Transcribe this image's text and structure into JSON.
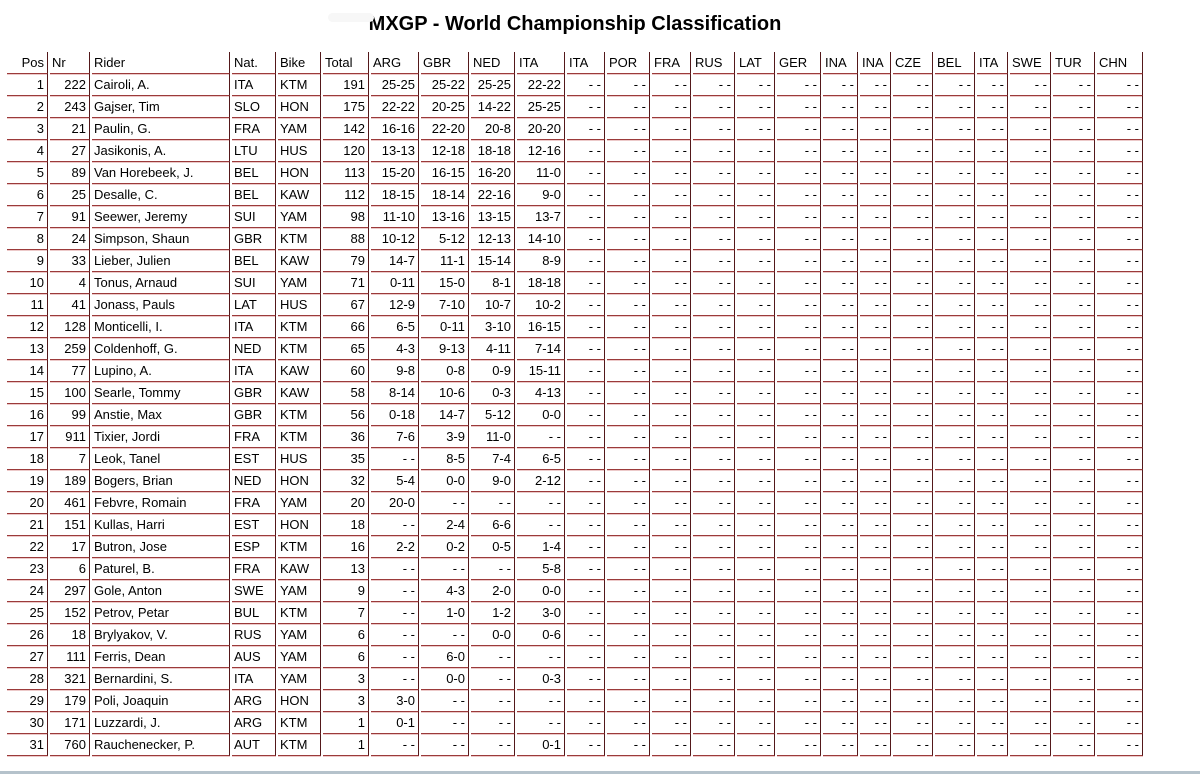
{
  "title": "MXGP - World Championship Classification",
  "table": {
    "columns": [
      "Pos",
      "Nr",
      "Rider",
      "Nat.",
      "Bike",
      "Total",
      "ARG",
      "GBR",
      "NED",
      "ITA",
      "ITA",
      "POR",
      "FRA",
      "RUS",
      "LAT",
      "GER",
      "INA",
      "INA",
      "CZE",
      "BEL",
      "ITA",
      "SWE",
      "TUR",
      "CHN"
    ],
    "gp_count": 18,
    "empty_cell": "- -",
    "rows": [
      {
        "pos": "1",
        "nr": "222",
        "rider": "Cairoli, A.",
        "nat": "ITA",
        "bike": "KTM",
        "total": "191",
        "results": [
          "25-25",
          "25-22",
          "25-25",
          "22-22"
        ]
      },
      {
        "pos": "2",
        "nr": "243",
        "rider": "Gajser, Tim",
        "nat": "SLO",
        "bike": "HON",
        "total": "175",
        "results": [
          "22-22",
          "20-25",
          "14-22",
          "25-25"
        ]
      },
      {
        "pos": "3",
        "nr": "21",
        "rider": "Paulin, G.",
        "nat": "FRA",
        "bike": "YAM",
        "total": "142",
        "results": [
          "16-16",
          "22-20",
          "20-8",
          "20-20"
        ]
      },
      {
        "pos": "4",
        "nr": "27",
        "rider": "Jasikonis, A.",
        "nat": "LTU",
        "bike": "HUS",
        "total": "120",
        "results": [
          "13-13",
          "12-18",
          "18-18",
          "12-16"
        ]
      },
      {
        "pos": "5",
        "nr": "89",
        "rider": "Van Horebeek, J.",
        "nat": "BEL",
        "bike": "HON",
        "total": "113",
        "results": [
          "15-20",
          "16-15",
          "16-20",
          "11-0"
        ]
      },
      {
        "pos": "6",
        "nr": "25",
        "rider": "Desalle, C.",
        "nat": "BEL",
        "bike": "KAW",
        "total": "112",
        "results": [
          "18-15",
          "18-14",
          "22-16",
          "9-0"
        ]
      },
      {
        "pos": "7",
        "nr": "91",
        "rider": "Seewer, Jeremy",
        "nat": "SUI",
        "bike": "YAM",
        "total": "98",
        "results": [
          "11-10",
          "13-16",
          "13-15",
          "13-7"
        ]
      },
      {
        "pos": "8",
        "nr": "24",
        "rider": "Simpson, Shaun",
        "nat": "GBR",
        "bike": "KTM",
        "total": "88",
        "results": [
          "10-12",
          "5-12",
          "12-13",
          "14-10"
        ]
      },
      {
        "pos": "9",
        "nr": "33",
        "rider": "Lieber, Julien",
        "nat": "BEL",
        "bike": "KAW",
        "total": "79",
        "results": [
          "14-7",
          "11-1",
          "15-14",
          "8-9"
        ]
      },
      {
        "pos": "10",
        "nr": "4",
        "rider": "Tonus, Arnaud",
        "nat": "SUI",
        "bike": "YAM",
        "total": "71",
        "results": [
          "0-11",
          "15-0",
          "8-1",
          "18-18"
        ]
      },
      {
        "pos": "11",
        "nr": "41",
        "rider": "Jonass, Pauls",
        "nat": "LAT",
        "bike": "HUS",
        "total": "67",
        "results": [
          "12-9",
          "7-10",
          "10-7",
          "10-2"
        ]
      },
      {
        "pos": "12",
        "nr": "128",
        "rider": "Monticelli, I.",
        "nat": "ITA",
        "bike": "KTM",
        "total": "66",
        "results": [
          "6-5",
          "0-11",
          "3-10",
          "16-15"
        ]
      },
      {
        "pos": "13",
        "nr": "259",
        "rider": "Coldenhoff, G.",
        "nat": "NED",
        "bike": "KTM",
        "total": "65",
        "results": [
          "4-3",
          "9-13",
          "4-11",
          "7-14"
        ]
      },
      {
        "pos": "14",
        "nr": "77",
        "rider": "Lupino, A.",
        "nat": "ITA",
        "bike": "KAW",
        "total": "60",
        "results": [
          "9-8",
          "0-8",
          "0-9",
          "15-11"
        ]
      },
      {
        "pos": "15",
        "nr": "100",
        "rider": "Searle, Tommy",
        "nat": "GBR",
        "bike": "KAW",
        "total": "58",
        "results": [
          "8-14",
          "10-6",
          "0-3",
          "4-13"
        ]
      },
      {
        "pos": "16",
        "nr": "99",
        "rider": "Anstie, Max",
        "nat": "GBR",
        "bike": "KTM",
        "total": "56",
        "results": [
          "0-18",
          "14-7",
          "5-12",
          "0-0"
        ]
      },
      {
        "pos": "17",
        "nr": "911",
        "rider": "Tixier, Jordi",
        "nat": "FRA",
        "bike": "KTM",
        "total": "36",
        "results": [
          "7-6",
          "3-9",
          "11-0",
          "- -"
        ]
      },
      {
        "pos": "18",
        "nr": "7",
        "rider": "Leok, Tanel",
        "nat": "EST",
        "bike": "HUS",
        "total": "35",
        "results": [
          "- -",
          "8-5",
          "7-4",
          "6-5"
        ]
      },
      {
        "pos": "19",
        "nr": "189",
        "rider": "Bogers, Brian",
        "nat": "NED",
        "bike": "HON",
        "total": "32",
        "results": [
          "5-4",
          "0-0",
          "9-0",
          "2-12"
        ]
      },
      {
        "pos": "20",
        "nr": "461",
        "rider": "Febvre, Romain",
        "nat": "FRA",
        "bike": "YAM",
        "total": "20",
        "results": [
          "20-0",
          "- -",
          "- -",
          "- -"
        ]
      },
      {
        "pos": "21",
        "nr": "151",
        "rider": "Kullas, Harri",
        "nat": "EST",
        "bike": "HON",
        "total": "18",
        "results": [
          "- -",
          "2-4",
          "6-6",
          "- -"
        ]
      },
      {
        "pos": "22",
        "nr": "17",
        "rider": "Butron, Jose",
        "nat": "ESP",
        "bike": "KTM",
        "total": "16",
        "results": [
          "2-2",
          "0-2",
          "0-5",
          "1-4"
        ]
      },
      {
        "pos": "23",
        "nr": "6",
        "rider": "Paturel, B.",
        "nat": "FRA",
        "bike": "KAW",
        "total": "13",
        "results": [
          "- -",
          "- -",
          "- -",
          "5-8"
        ]
      },
      {
        "pos": "24",
        "nr": "297",
        "rider": "Gole, Anton",
        "nat": "SWE",
        "bike": "YAM",
        "total": "9",
        "results": [
          "- -",
          "4-3",
          "2-0",
          "0-0"
        ]
      },
      {
        "pos": "25",
        "nr": "152",
        "rider": "Petrov, Petar",
        "nat": "BUL",
        "bike": "KTM",
        "total": "7",
        "results": [
          "- -",
          "1-0",
          "1-2",
          "3-0"
        ]
      },
      {
        "pos": "26",
        "nr": "18",
        "rider": "Brylyakov, V.",
        "nat": "RUS",
        "bike": "YAM",
        "total": "6",
        "results": [
          "- -",
          "- -",
          "0-0",
          "0-6"
        ]
      },
      {
        "pos": "27",
        "nr": "111",
        "rider": "Ferris, Dean",
        "nat": "AUS",
        "bike": "YAM",
        "total": "6",
        "results": [
          "- -",
          "6-0",
          "- -",
          "- -"
        ]
      },
      {
        "pos": "28",
        "nr": "321",
        "rider": "Bernardini, S.",
        "nat": "ITA",
        "bike": "YAM",
        "total": "3",
        "results": [
          "- -",
          "0-0",
          "- -",
          "0-3"
        ]
      },
      {
        "pos": "29",
        "nr": "179",
        "rider": "Poli, Joaquin",
        "nat": "ARG",
        "bike": "HON",
        "total": "3",
        "results": [
          "3-0",
          "- -",
          "- -",
          "- -"
        ]
      },
      {
        "pos": "30",
        "nr": "171",
        "rider": "Luzzardi, J.",
        "nat": "ARG",
        "bike": "KTM",
        "total": "1",
        "results": [
          "0-1",
          "- -",
          "- -",
          "- -"
        ]
      },
      {
        "pos": "31",
        "nr": "760",
        "rider": "Rauchenecker, P.",
        "nat": "AUT",
        "bike": "KTM",
        "total": "1",
        "results": [
          "- -",
          "- -",
          "- -",
          "0-1"
        ]
      }
    ]
  },
  "colors": {
    "border_vertical": "#53181a",
    "border_horizontal": "#9b3a3a",
    "border_highlight": "#ecc9c9",
    "bottom_edge": "#b5c2cb",
    "text": "#000000"
  }
}
